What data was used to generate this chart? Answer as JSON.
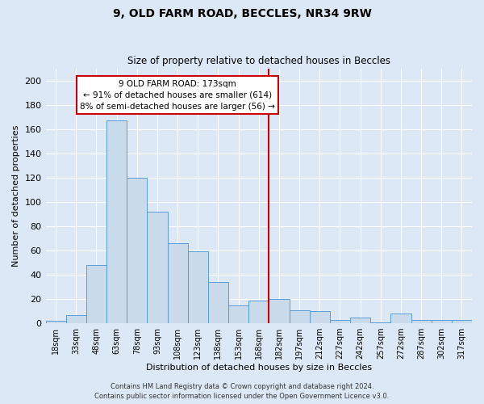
{
  "title1": "9, OLD FARM ROAD, BECCLES, NR34 9RW",
  "title2": "Size of property relative to detached houses in Beccles",
  "xlabel": "Distribution of detached houses by size in Beccles",
  "ylabel": "Number of detached properties",
  "bar_labels": [
    "18sqm",
    "33sqm",
    "48sqm",
    "63sqm",
    "78sqm",
    "93sqm",
    "108sqm",
    "123sqm",
    "138sqm",
    "153sqm",
    "168sqm",
    "182sqm",
    "197sqm",
    "212sqm",
    "227sqm",
    "242sqm",
    "257sqm",
    "272sqm",
    "287sqm",
    "302sqm",
    "317sqm"
  ],
  "bar_values": [
    2,
    7,
    48,
    167,
    120,
    92,
    66,
    59,
    34,
    15,
    19,
    20,
    11,
    10,
    3,
    5,
    1,
    8,
    3,
    3,
    3
  ],
  "bar_color": "#c9daea",
  "bar_edge_color": "#5b9bd5",
  "bar_width": 1.0,
  "ylim": [
    0,
    210
  ],
  "yticks": [
    0,
    20,
    40,
    60,
    80,
    100,
    120,
    140,
    160,
    180,
    200
  ],
  "vline_x": 10.5,
  "vline_color": "#cc0000",
  "annotation_title": "9 OLD FARM ROAD: 173sqm",
  "annotation_line1": "← 91% of detached houses are smaller (614)",
  "annotation_line2": "8% of semi-detached houses are larger (56) →",
  "annotation_box_color": "#ffffff",
  "annotation_box_edge": "#cc0000",
  "background_color": "#dce8f5",
  "grid_color": "#ffffff",
  "footer1": "Contains HM Land Registry data © Crown copyright and database right 2024.",
  "footer2": "Contains public sector information licensed under the Open Government Licence v3.0."
}
